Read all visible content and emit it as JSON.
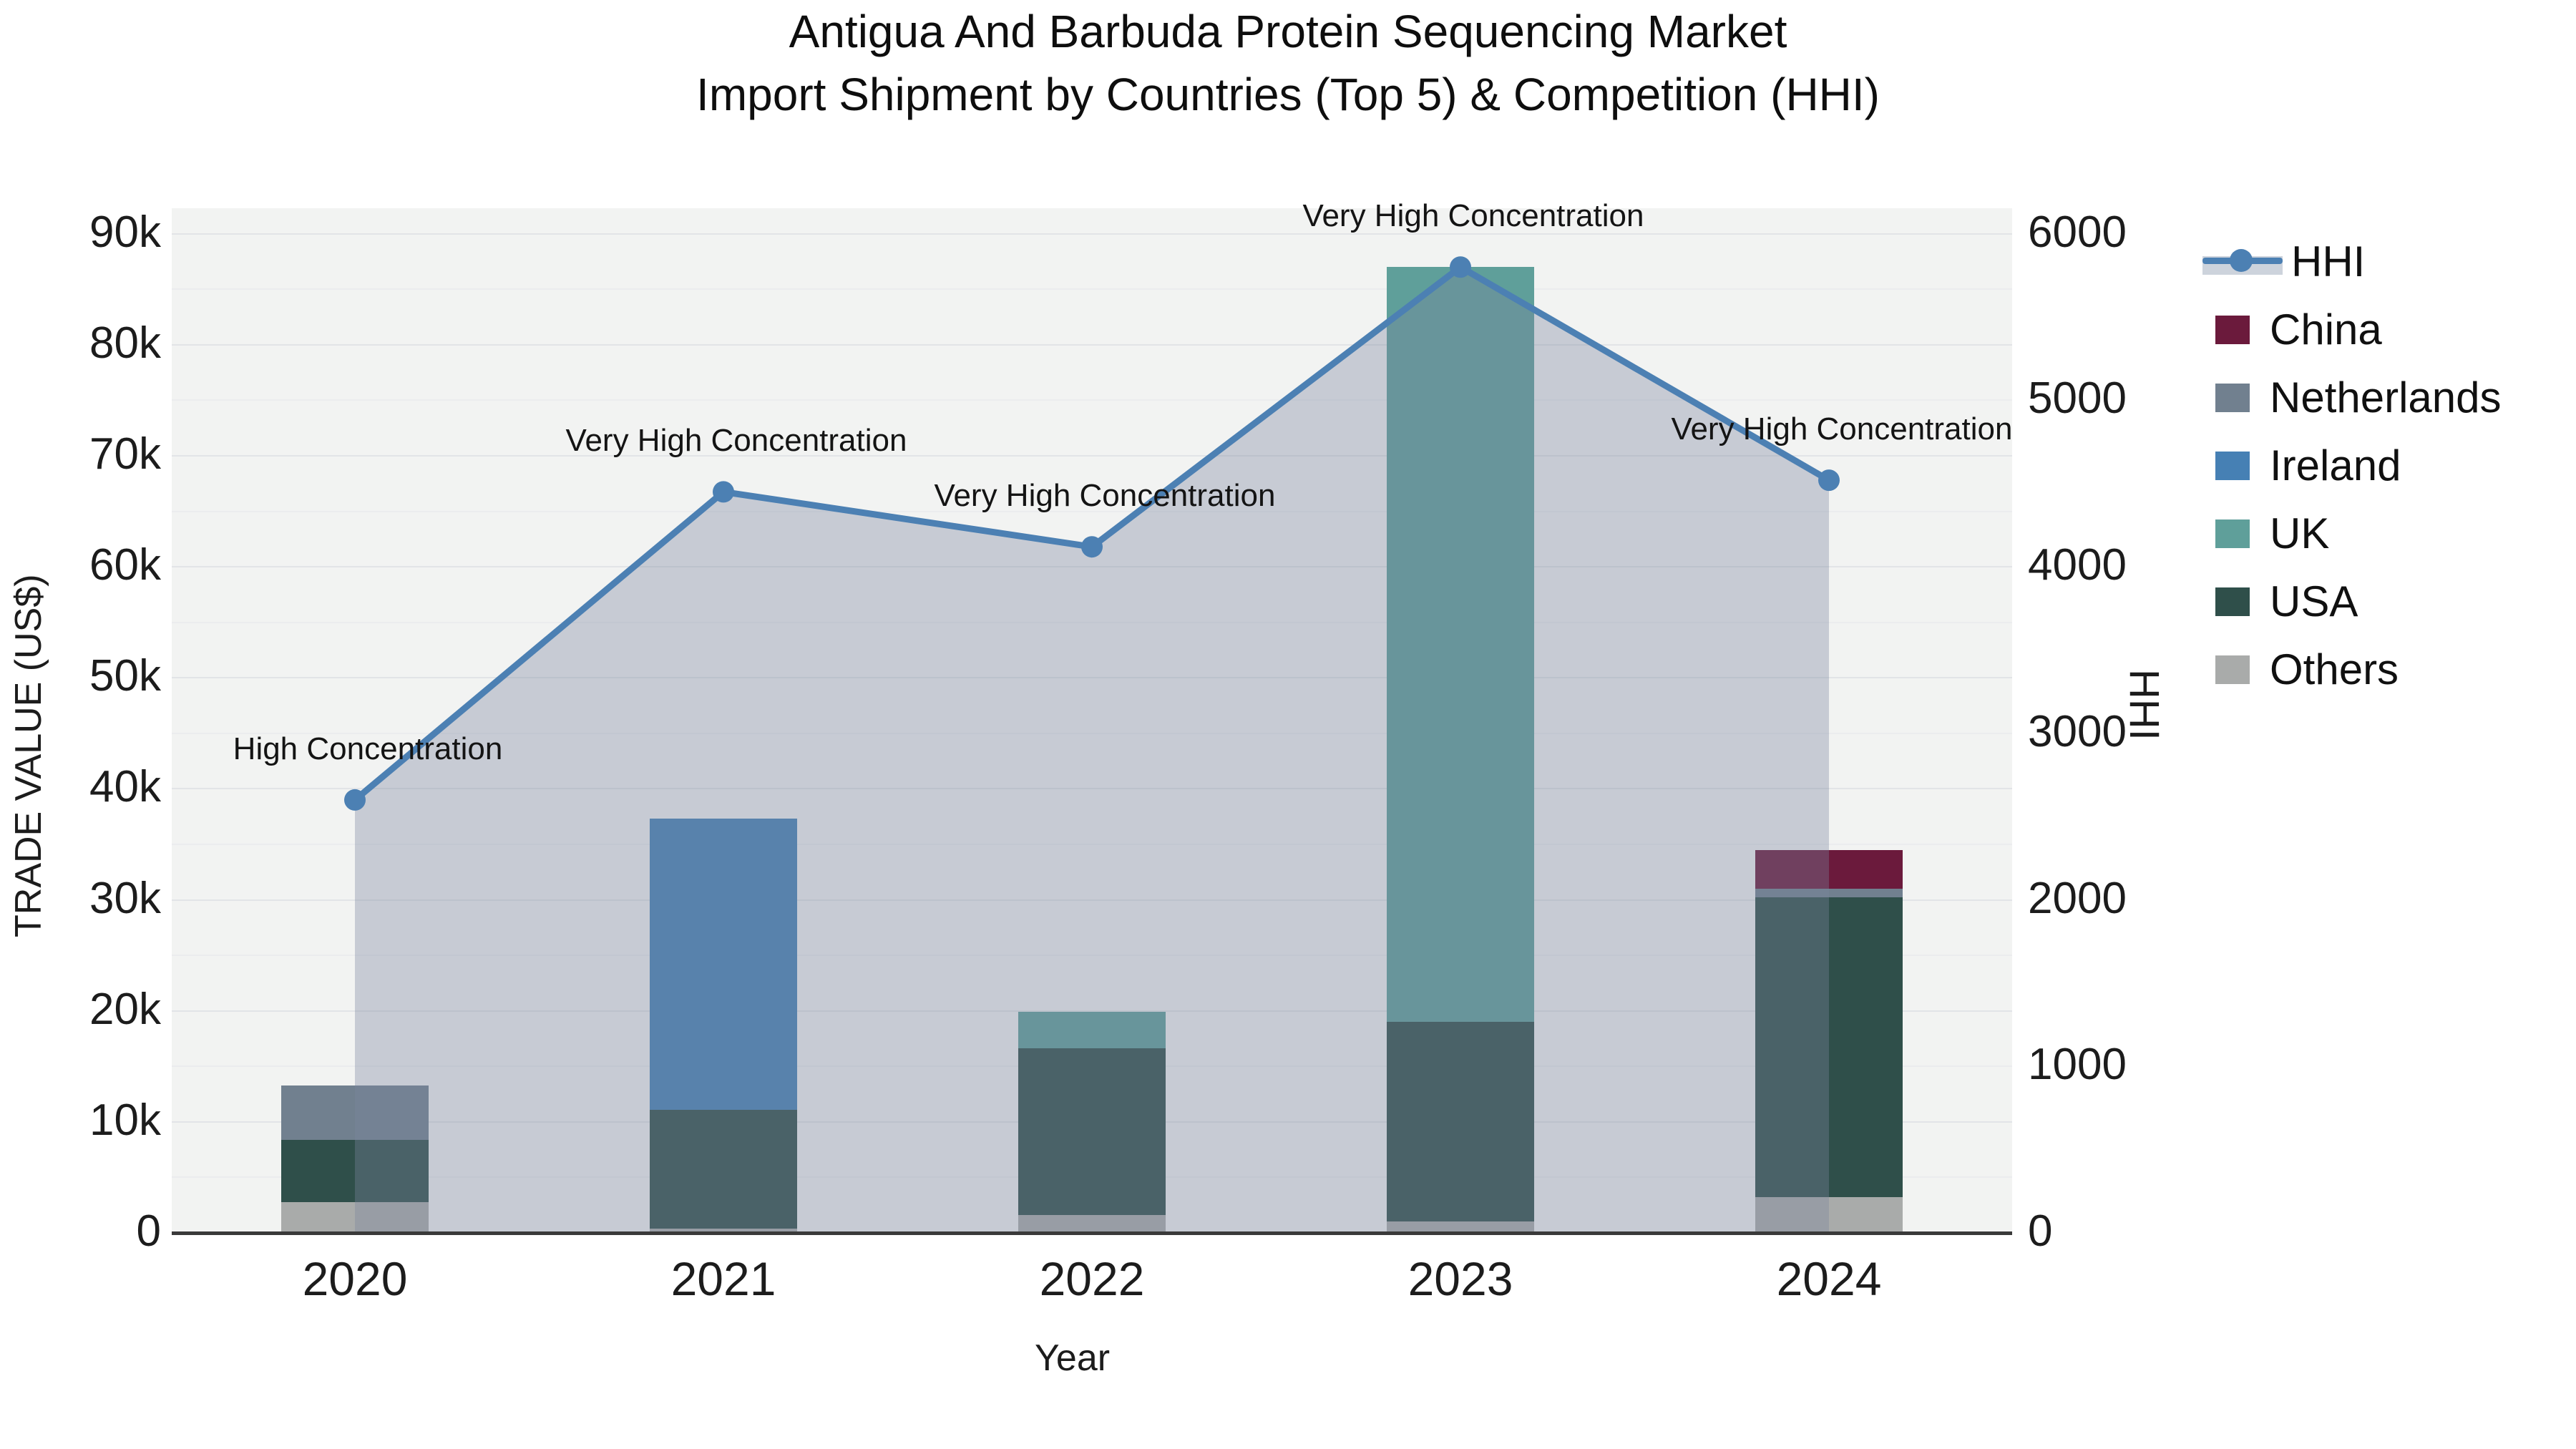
{
  "title": {
    "line1": "Antigua And Barbuda Protein Sequencing Market",
    "line2": "Import Shipment by Countries (Top 5) & Competition (HHI)"
  },
  "axes": {
    "x": {
      "title": "Year",
      "ticks": [
        "2020",
        "2021",
        "2022",
        "2023",
        "2024"
      ]
    },
    "y_left": {
      "title": "TRADE VALUE (US$)",
      "ticks": [
        "0",
        "10k",
        "20k",
        "30k",
        "40k",
        "50k",
        "60k",
        "70k",
        "80k",
        "90k"
      ]
    },
    "y_right": {
      "title": "HHI",
      "ticks": [
        "0",
        "1000",
        "2000",
        "3000",
        "4000",
        "5000",
        "6000"
      ]
    }
  },
  "legend": {
    "items": [
      {
        "label": "HHI",
        "type": "line",
        "color": "#4c80b3"
      },
      {
        "label": "China",
        "type": "swatch",
        "color": "#6b1a3c"
      },
      {
        "label": "Netherlands",
        "type": "swatch",
        "color": "#71808f"
      },
      {
        "label": "Ireland",
        "type": "swatch",
        "color": "#4680b4"
      },
      {
        "label": "UK",
        "type": "swatch",
        "color": "#5f9f9a"
      },
      {
        "label": "USA",
        "type": "swatch",
        "color": "#2f4f4a"
      },
      {
        "label": "Others",
        "type": "swatch",
        "color": "#a9abaa"
      }
    ]
  },
  "annotations": [
    {
      "year": "2020",
      "text": "High Concentration"
    },
    {
      "year": "2021",
      "text": "Very High Concentration"
    },
    {
      "year": "2022",
      "text": "Very High Concentration"
    },
    {
      "year": "2023",
      "text": "Very High Concentration"
    },
    {
      "year": "2024",
      "text": "Very High Concentration"
    }
  ],
  "chart_data": {
    "type": "bar+line",
    "categories": [
      "2020",
      "2021",
      "2022",
      "2023",
      "2024"
    ],
    "bar_stack_order_bottom_to_top": [
      "Others",
      "USA",
      "UK",
      "Ireland",
      "Netherlands",
      "China"
    ],
    "bar_series": [
      {
        "name": "Others",
        "color": "#a9abaa",
        "values": [
          2800,
          400,
          1600,
          1000,
          3200
        ]
      },
      {
        "name": "USA",
        "color": "#2f4f4a",
        "values": [
          5600,
          10700,
          15000,
          18000,
          27000
        ]
      },
      {
        "name": "UK",
        "color": "#5f9f9a",
        "values": [
          0,
          0,
          3300,
          68000,
          0
        ]
      },
      {
        "name": "Ireland",
        "color": "#4680b4",
        "values": [
          0,
          26200,
          0,
          0,
          0
        ]
      },
      {
        "name": "Netherlands",
        "color": "#71808f",
        "values": [
          4900,
          0,
          0,
          0,
          800
        ]
      },
      {
        "name": "China",
        "color": "#6b1a3c",
        "values": [
          0,
          0,
          0,
          0,
          3500
        ]
      }
    ],
    "bar_totals": [
      13300,
      37300,
      19900,
      87000,
      34500
    ],
    "line_series": {
      "name": "HHI",
      "values": [
        2600,
        4450,
        4120,
        5800,
        4520
      ],
      "color": "#4c80b3",
      "area_fill": "rgba(122,134,158,0.36)",
      "axis": "right"
    },
    "xlabel": "Year",
    "ylabel_left": "TRADE VALUE (US$)",
    "ylabel_right": "HHI",
    "ylim_left": [
      0,
      92300
    ],
    "ylim_right": [
      0,
      6153
    ],
    "axis_link": "left 15000 = right 1000",
    "grid": true,
    "legend_position": "right"
  }
}
